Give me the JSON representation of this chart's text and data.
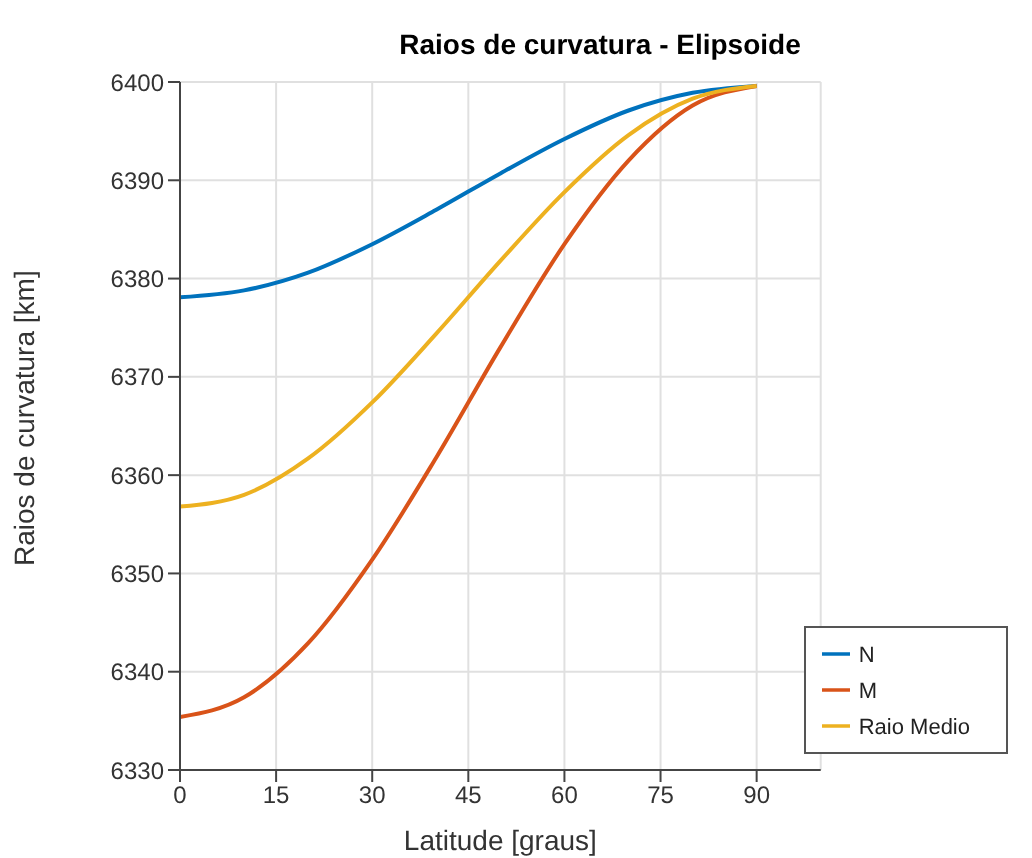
{
  "chart_data": {
    "type": "line",
    "title": "Raios de curvatura - Elipsoide",
    "xlabel": "Latitude [graus]",
    "ylabel": "Raios de curvatura [km]",
    "x": [
      0,
      10,
      20,
      30,
      40,
      50,
      60,
      70,
      80,
      90
    ],
    "series": [
      {
        "name": "N",
        "color": "#0072bd",
        "values": [
          6378.1,
          6378.8,
          6380.6,
          6383.5,
          6387.0,
          6390.7,
          6394.2,
          6397.1,
          6398.9,
          6399.6
        ]
      },
      {
        "name": "M",
        "color": "#d95319",
        "values": [
          6335.4,
          6337.4,
          6342.9,
          6351.4,
          6361.8,
          6373.0,
          6383.5,
          6392.0,
          6397.6,
          6399.6
        ]
      },
      {
        "name": "Raio Medio",
        "color": "#edb120",
        "values": [
          6356.8,
          6358.0,
          6361.7,
          6367.4,
          6374.4,
          6381.8,
          6388.8,
          6394.6,
          6398.3,
          6399.6
        ]
      }
    ],
    "xlim": [
      0,
      100
    ],
    "xticks": [
      0,
      15,
      30,
      45,
      60,
      75,
      90
    ],
    "ylim": [
      6330,
      6400
    ],
    "yticks": [
      6330,
      6340,
      6350,
      6360,
      6370,
      6380,
      6390,
      6400
    ],
    "grid": true,
    "legend": "bottom right",
    "marker": "none",
    "line_style": "solid"
  }
}
